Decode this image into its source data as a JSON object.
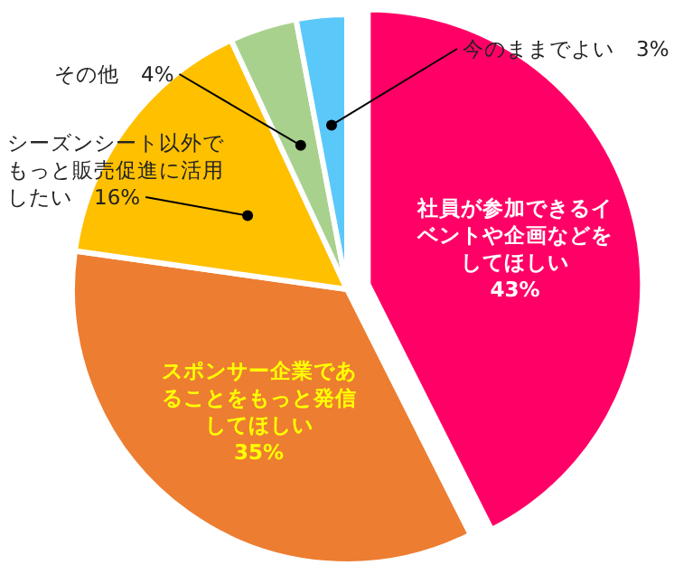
{
  "chart_data": {
    "type": "pie",
    "categories": [
      "社員が参加できるイベントや企画などをしてほしい",
      "スポンサー企業であることをもっと発信してほしい",
      "シーズンシート以外でもっと販売促進に活用したい",
      "その他",
      "今のままでよい"
    ],
    "values": [
      43,
      35,
      16,
      4,
      3
    ],
    "colors": [
      "#ff0066",
      "#ed7d31",
      "#ffc000",
      "#a9d18e",
      "#5bc8fa"
    ],
    "value_labels": [
      "43%",
      "35%",
      "16%",
      "4%",
      "3%"
    ]
  }
}
